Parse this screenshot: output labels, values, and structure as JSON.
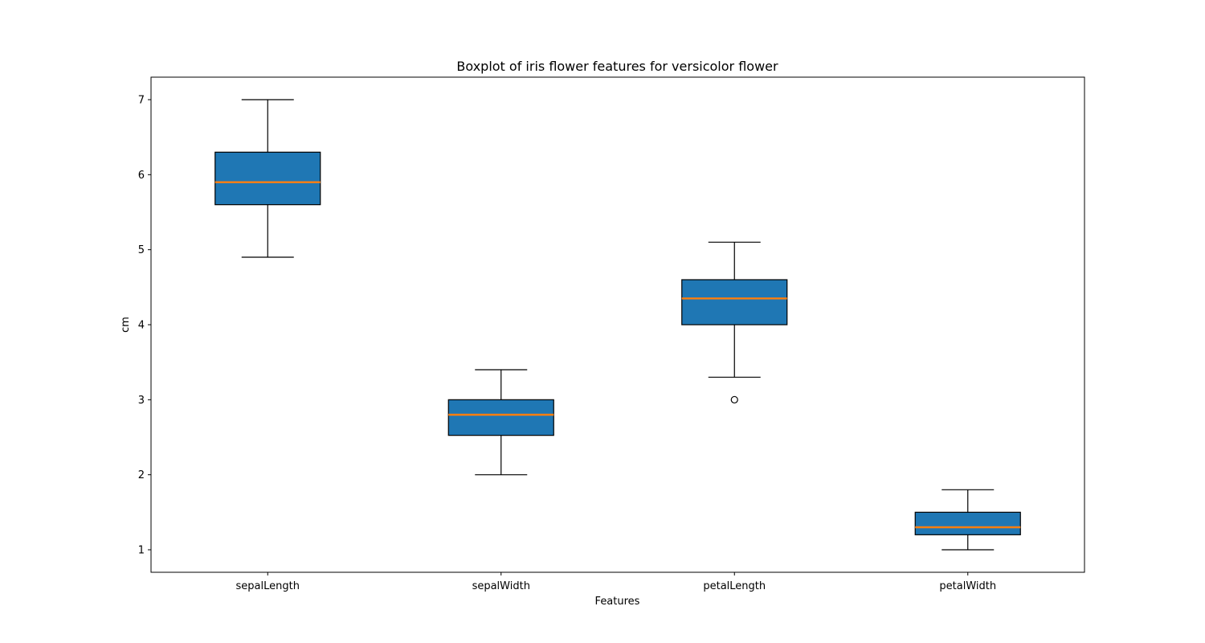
{
  "chart_data": {
    "type": "box",
    "title": "Boxplot of iris flower features for versicolor flower",
    "xlabel": "Features",
    "ylabel": "cm",
    "ylim": [
      0.7,
      7.3
    ],
    "yticks": [
      1,
      2,
      3,
      4,
      5,
      6,
      7
    ],
    "categories": [
      "sepalLength",
      "sepalWidth",
      "petalLength",
      "petalWidth"
    ],
    "boxes": [
      {
        "category": "sepalLength",
        "whisker_low": 4.9,
        "q1": 5.6,
        "median": 5.9,
        "q3": 6.3,
        "whisker_high": 7.0,
        "outliers": []
      },
      {
        "category": "sepalWidth",
        "whisker_low": 2.0,
        "q1": 2.525,
        "median": 2.8,
        "q3": 3.0,
        "whisker_high": 3.4,
        "outliers": []
      },
      {
        "category": "petalLength",
        "whisker_low": 3.3,
        "q1": 4.0,
        "median": 4.35,
        "q3": 4.6,
        "whisker_high": 5.1,
        "outliers": [
          3.0
        ]
      },
      {
        "category": "petalWidth",
        "whisker_low": 1.0,
        "q1": 1.2,
        "median": 1.3,
        "q3": 1.5,
        "whisker_high": 1.8,
        "outliers": []
      }
    ],
    "grid": false,
    "colors": {
      "box_fill": "#1f77b4",
      "median": "#ff7f0e",
      "edge": "#000000"
    }
  }
}
